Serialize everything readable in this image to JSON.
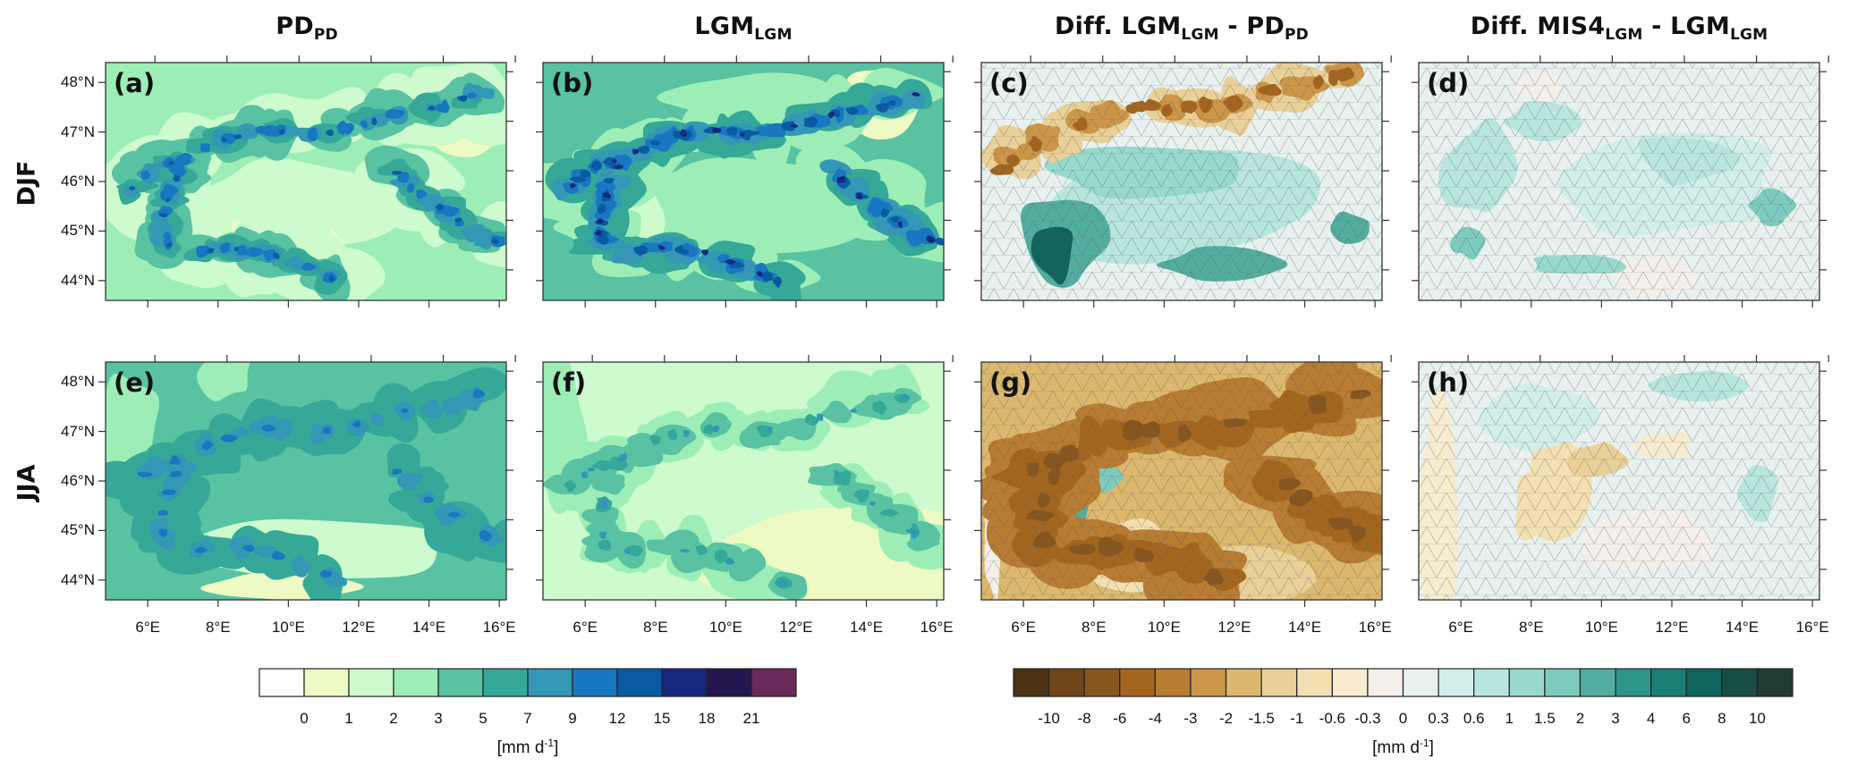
{
  "chart_data": {
    "type": "heatmap",
    "description": "Multi-panel map figure of precipitation over the Alps region",
    "columns": [
      {
        "title_main": "PD",
        "title_sub": "PD",
        "title_parts": [
          [
            "PD",
            "PD"
          ]
        ],
        "kind": "absolute"
      },
      {
        "title_main": "LGM",
        "title_sub": "LGM",
        "title_parts": [
          [
            "LGM",
            "LGM"
          ]
        ],
        "kind": "absolute"
      },
      {
        "title_parts": [
          [
            "Diff. LGM",
            "LGM"
          ],
          [
            " - PD",
            "PD"
          ]
        ],
        "kind": "difference"
      },
      {
        "title_parts": [
          [
            "Diff. MIS4",
            "LGM"
          ],
          [
            " - LGM",
            "LGM"
          ]
        ],
        "kind": "difference"
      }
    ],
    "rows": [
      {
        "label": "DJF"
      },
      {
        "label": "JJA"
      }
    ],
    "panels": [
      {
        "letter": "(a)",
        "row": 0,
        "col": 0,
        "scale": "abs",
        "hatched": false,
        "pattern": "abs_djf_pd"
      },
      {
        "letter": "(b)",
        "row": 0,
        "col": 1,
        "scale": "abs",
        "hatched": false,
        "pattern": "abs_djf_lgm"
      },
      {
        "letter": "(c)",
        "row": 0,
        "col": 2,
        "scale": "diff",
        "hatched": true,
        "pattern": "diff_djf_c"
      },
      {
        "letter": "(d)",
        "row": 0,
        "col": 3,
        "scale": "diff",
        "hatched": true,
        "pattern": "diff_djf_d"
      },
      {
        "letter": "(e)",
        "row": 1,
        "col": 0,
        "scale": "abs",
        "hatched": false,
        "pattern": "abs_jja_pd"
      },
      {
        "letter": "(f)",
        "row": 1,
        "col": 1,
        "scale": "abs",
        "hatched": false,
        "pattern": "abs_jja_lgm"
      },
      {
        "letter": "(g)",
        "row": 1,
        "col": 2,
        "scale": "diff",
        "hatched": true,
        "pattern": "diff_jja_g"
      },
      {
        "letter": "(h)",
        "row": 1,
        "col": 3,
        "scale": "diff",
        "hatched": true,
        "pattern": "diff_jja_h"
      }
    ],
    "lat_ticks": [
      "48°N",
      "47°N",
      "46°N",
      "45°N",
      "44°N"
    ],
    "lat_values": [
      48,
      47,
      46,
      45,
      44
    ],
    "lat_range": [
      43.6,
      48.4
    ],
    "lon_ticks": [
      "6°E",
      "8°E",
      "10°E",
      "12°E",
      "14°E",
      "16°E"
    ],
    "lon_values": [
      6,
      8,
      10,
      12,
      14,
      16
    ],
    "lon_range": [
      4.8,
      16.2
    ],
    "colorbars": [
      {
        "name": "absolute",
        "labels": [
          "0",
          "1",
          "2",
          "3",
          "5",
          "7",
          "9",
          "12",
          "15",
          "18",
          "21"
        ],
        "colors": [
          "#ffffff",
          "#eefac4",
          "#cdfbcd",
          "#9ceeb6",
          "#58c2a2",
          "#35a898",
          "#3397b5",
          "#1877c0",
          "#0a5aa2",
          "#18287e",
          "#24174e",
          "#6a2a5a"
        ],
        "unit": "mm d",
        "unit_sup": "-1"
      },
      {
        "name": "difference",
        "labels": [
          "-10",
          "-8",
          "-6",
          "-4",
          "-3",
          "-2",
          "-1.5",
          "-1",
          "-0.6",
          "-0.3",
          "0",
          "0.3",
          "0.6",
          "1",
          "1.5",
          "2",
          "3",
          "4",
          "6",
          "8",
          "10"
        ],
        "colors": [
          "#4a3212",
          "#6e461a",
          "#86561e",
          "#a4661f",
          "#b87c33",
          "#cc964a",
          "#dcb86e",
          "#e9d098",
          "#f2e0b2",
          "#f7ecd0",
          "#f5efeb",
          "#e8f1ef",
          "#d2eeea",
          "#b8e6df",
          "#97d9cd",
          "#7dcbbe",
          "#53ad9f",
          "#2d9589",
          "#1a7f74",
          "#0f655c",
          "#184e45",
          "#213b35"
        ],
        "unit": "mm d",
        "unit_sup": "-1"
      }
    ]
  }
}
